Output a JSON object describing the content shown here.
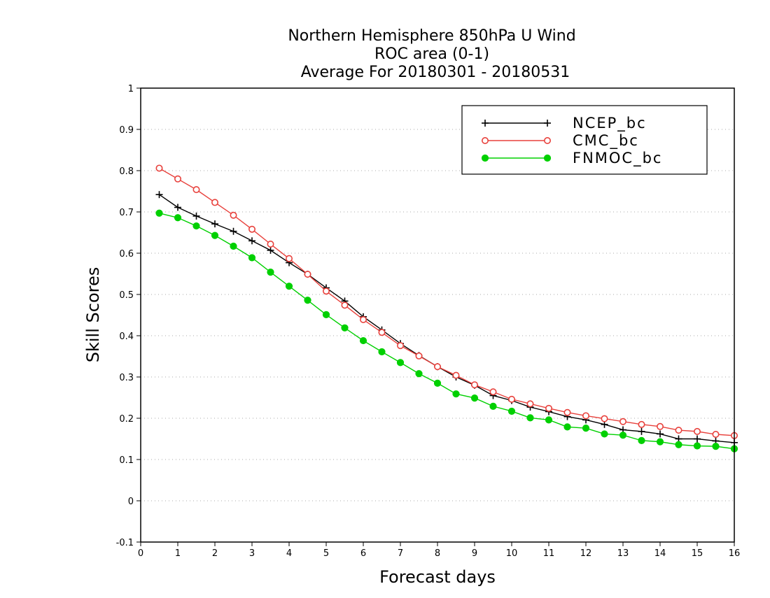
{
  "title_lines": [
    "Northern Hemisphere 850hPa U Wind",
    "ROC area (0-1)",
    "Average For 20180301 - 20180531"
  ],
  "colors": {
    "NCEP_bc": "#000000",
    "CMC_bc": "#e8413c",
    "FNMOC_bc": "#00d000",
    "grid": "#aaaaaa",
    "frame": "#000000"
  },
  "chart_data": {
    "type": "line",
    "title": "Northern Hemisphere 850hPa U Wind\nROC area (0-1)\nAverage For 20180301 - 20180531",
    "xlabel": "Forecast days",
    "ylabel": "Skill Scores",
    "xlim": [
      0,
      16
    ],
    "ylim": [
      -0.1,
      1
    ],
    "xticks": [
      "0",
      "1",
      "2",
      "3",
      "4",
      "5",
      "6",
      "7",
      "8",
      "9",
      "10",
      "11",
      "12",
      "13",
      "14",
      "15",
      "16"
    ],
    "yticks": [
      "-0.1",
      "0",
      "0.1",
      "0.2",
      "0.3",
      "0.4",
      "0.5",
      "0.6",
      "0.7",
      "0.8",
      "0.9",
      "1"
    ],
    "grid": "horizontal dotted",
    "legend_position": "top-right",
    "x": [
      0.5,
      1,
      1.5,
      2,
      2.5,
      3,
      3.5,
      4,
      4.5,
      5,
      5.5,
      6,
      6.5,
      7,
      7.5,
      8,
      8.5,
      9,
      9.5,
      10,
      10.5,
      11,
      11.5,
      12,
      12.5,
      13,
      13.5,
      14,
      14.5,
      15,
      15.5,
      16
    ],
    "series": [
      {
        "name": "NCEP_bc",
        "marker": "plus",
        "values": [
          0.742,
          0.711,
          0.69,
          0.671,
          0.653,
          0.63,
          0.607,
          0.577,
          0.549,
          0.516,
          0.484,
          0.446,
          0.414,
          0.381,
          0.352,
          0.325,
          0.3,
          0.28,
          0.255,
          0.243,
          0.227,
          0.216,
          0.204,
          0.196,
          0.185,
          0.172,
          0.168,
          0.162,
          0.15,
          0.15,
          0.145,
          0.141
        ]
      },
      {
        "name": "CMC_bc",
        "marker": "open-circle",
        "values": [
          0.806,
          0.78,
          0.754,
          0.723,
          0.692,
          0.658,
          0.622,
          0.587,
          0.549,
          0.508,
          0.474,
          0.439,
          0.408,
          0.376,
          0.351,
          0.325,
          0.304,
          0.281,
          0.264,
          0.246,
          0.235,
          0.224,
          0.214,
          0.206,
          0.199,
          0.192,
          0.185,
          0.18,
          0.171,
          0.168,
          0.161,
          0.158
        ]
      },
      {
        "name": "FNMOC_bc",
        "marker": "filled-circle",
        "values": [
          0.697,
          0.686,
          0.666,
          0.643,
          0.617,
          0.589,
          0.554,
          0.52,
          0.486,
          0.451,
          0.419,
          0.388,
          0.361,
          0.335,
          0.308,
          0.285,
          0.259,
          0.249,
          0.229,
          0.217,
          0.201,
          0.196,
          0.179,
          0.176,
          0.162,
          0.159,
          0.146,
          0.143,
          0.136,
          0.133,
          0.132,
          0.126
        ]
      }
    ]
  }
}
